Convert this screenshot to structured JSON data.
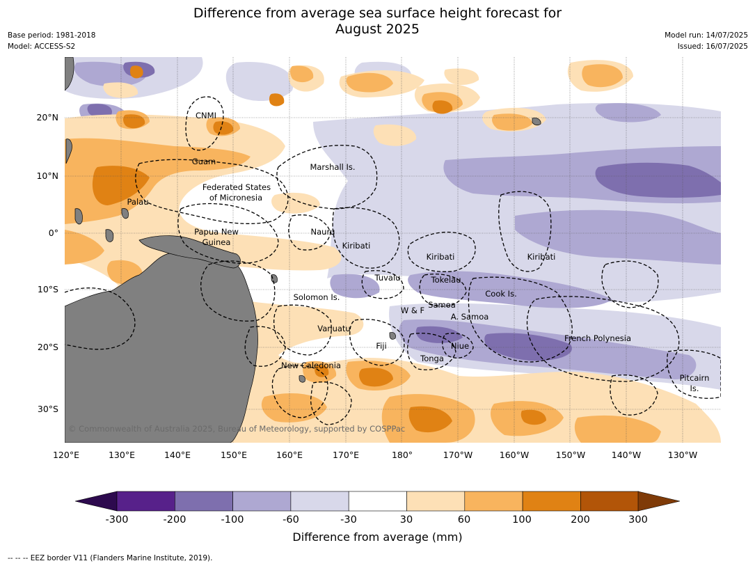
{
  "title_line1": "Difference from average sea surface height forecast for",
  "title_line2": "August 2025",
  "meta": {
    "base_period": "Base period: 1981-2018",
    "model": "Model: ACCESS-S2",
    "model_run": "Model run: 14/07/2025",
    "issued": "Issued: 16/07/2025"
  },
  "axes": {
    "lon_labels": [
      "120°E",
      "130°E",
      "140°E",
      "150°E",
      "160°E",
      "170°E",
      "180°",
      "170°W",
      "160°W",
      "150°W",
      "140°W",
      "130°W"
    ],
    "lat_labels": [
      "20°N",
      "10°N",
      "0°",
      "10°S",
      "20°S",
      "30°S"
    ]
  },
  "places": [
    {
      "name": "CNMI"
    },
    {
      "name": "Guam"
    },
    {
      "name": "Marshall Is."
    },
    {
      "name": "Federated States"
    },
    {
      "name": "of Micronesia"
    },
    {
      "name": "Palau"
    },
    {
      "name": "Papua New"
    },
    {
      "name": "Guinea"
    },
    {
      "name": "Nauru"
    },
    {
      "name": "Kiribati"
    },
    {
      "name": "Kiribati"
    },
    {
      "name": "Kiribati"
    },
    {
      "name": "Tuvalu"
    },
    {
      "name": "Tokelau"
    },
    {
      "name": "Solomon Is."
    },
    {
      "name": "Cook Is."
    },
    {
      "name": "W & F"
    },
    {
      "name": "Samoa"
    },
    {
      "name": "A. Samoa"
    },
    {
      "name": "Vanuatu"
    },
    {
      "name": "French Polynesia"
    },
    {
      "name": "Fiji"
    },
    {
      "name": "Niue"
    },
    {
      "name": "Tonga"
    },
    {
      "name": "New Caledonia"
    },
    {
      "name": "Pitcairn"
    },
    {
      "name": "Is."
    }
  ],
  "copyright": "© Commonwealth of Australia 2025, Bureau of Meteorology, supported by COSPPac",
  "colorbar": {
    "label": "Difference from average (mm)",
    "ticks": [
      "-300",
      "-200",
      "-100",
      "-60",
      "-30",
      "30",
      "60",
      "100",
      "200",
      "300"
    ],
    "colors": [
      "#2d0a4e",
      "#57218a",
      "#7e6fae",
      "#aea8d2",
      "#d8d8ea",
      "#ffffff",
      "#fde0b6",
      "#f8b45e",
      "#e08214",
      "#b25508",
      "#7f3b08"
    ]
  },
  "footnote": "--  --  -- EEZ border V11 (Flanders Marine Institute, 2019)."
}
